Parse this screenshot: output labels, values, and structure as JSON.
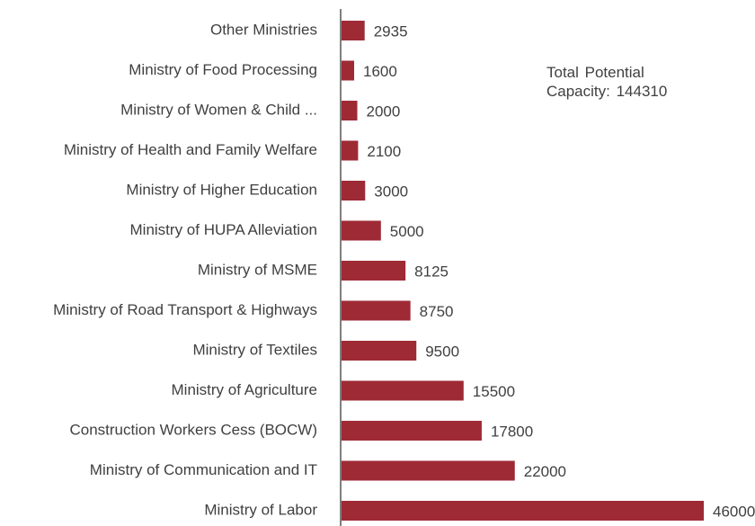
{
  "chart_data": {
    "type": "bar",
    "orientation": "horizontal",
    "categories": [
      "Other Ministries",
      "Ministry of  Food Processing",
      "Ministry of Women & Child ...",
      "Ministry of Health and Family Welfare",
      "Ministry of Higher Education",
      "Ministry of HUPA Alleviation",
      "Ministry of MSME",
      "Ministry of Road Transport & Highways",
      "Ministry of Textiles",
      "Ministry of Agriculture",
      "Construction Workers Cess (BOCW)",
      "Ministry of Communication and IT",
      "Ministry of Labor"
    ],
    "values": [
      2935,
      1600,
      2000,
      2100,
      3000,
      5000,
      8125,
      8750,
      9500,
      15500,
      17800,
      22000,
      46000
    ],
    "color": "#9e2a36",
    "annotation": "Total  Potential Capacity: 144310"
  }
}
